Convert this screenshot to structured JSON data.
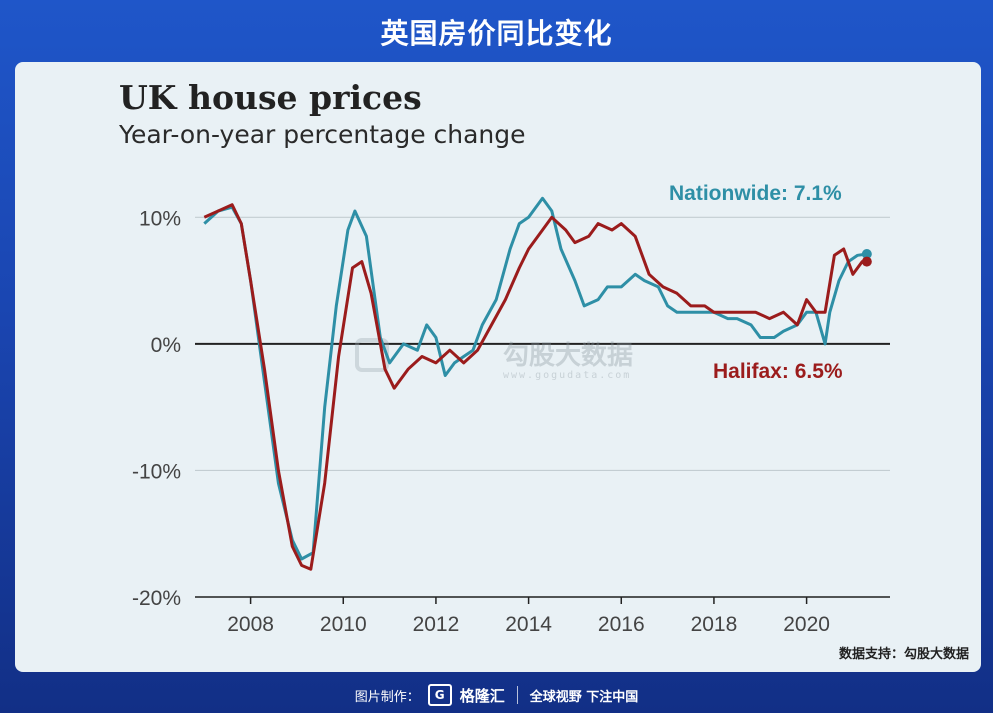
{
  "header": {
    "title": "英国房价同比变化"
  },
  "chart_data": {
    "type": "line",
    "title": "UK house prices",
    "subtitle": "Year-on-year percentage change",
    "xlabel": "",
    "ylabel": "",
    "xlim": [
      2006.8,
      2021.8
    ],
    "ylim": [
      -20,
      12
    ],
    "y_ticks": [
      10,
      0,
      -10,
      -20
    ],
    "y_tick_labels": [
      "10%",
      "0%",
      "-10%",
      "-20%"
    ],
    "x_ticks": [
      2008,
      2010,
      2012,
      2014,
      2016,
      2018,
      2020
    ],
    "x_tick_labels": [
      "2008",
      "2010",
      "2012",
      "2014",
      "2016",
      "2018",
      "2020"
    ],
    "grid": true,
    "series": [
      {
        "name": "Nationwide: 7.1%",
        "color": "#2e8fa6",
        "x": [
          2007.0,
          2007.3,
          2007.6,
          2007.8,
          2008.0,
          2008.3,
          2008.6,
          2008.9,
          2009.1,
          2009.35,
          2009.6,
          2009.85,
          2010.1,
          2010.25,
          2010.5,
          2010.8,
          2011.0,
          2011.3,
          2011.6,
          2011.8,
          2012.0,
          2012.2,
          2012.4,
          2012.6,
          2012.8,
          2013.0,
          2013.3,
          2013.6,
          2013.8,
          2014.0,
          2014.3,
          2014.5,
          2014.7,
          2015.0,
          2015.2,
          2015.5,
          2015.7,
          2016.0,
          2016.3,
          2016.5,
          2016.8,
          2017.0,
          2017.2,
          2017.5,
          2017.8,
          2018.0,
          2018.3,
          2018.5,
          2018.8,
          2019.0,
          2019.3,
          2019.5,
          2019.8,
          2020.0,
          2020.2,
          2020.4,
          2020.5,
          2020.7,
          2020.9,
          2021.1,
          2021.3
        ],
        "values": [
          9.5,
          10.5,
          10.8,
          9.5,
          5.0,
          -3.0,
          -11.0,
          -15.5,
          -17.0,
          -16.5,
          -5.0,
          3.0,
          9.0,
          10.5,
          8.5,
          0.5,
          -1.5,
          0.0,
          -0.5,
          1.5,
          0.5,
          -2.5,
          -1.5,
          -1.0,
          -0.5,
          1.5,
          3.5,
          7.5,
          9.5,
          10.0,
          11.5,
          10.5,
          7.5,
          5.0,
          3.0,
          3.5,
          4.5,
          4.5,
          5.5,
          5.0,
          4.5,
          3.0,
          2.5,
          2.5,
          2.5,
          2.5,
          2.0,
          2.0,
          1.5,
          0.5,
          0.5,
          1.0,
          1.5,
          2.5,
          2.5,
          0.0,
          2.5,
          5.0,
          6.5,
          7.0,
          7.1
        ]
      },
      {
        "name": "Halifax: 6.5%",
        "color": "#9b1c1c",
        "x": [
          2007.0,
          2007.3,
          2007.6,
          2007.8,
          2008.0,
          2008.3,
          2008.6,
          2008.9,
          2009.1,
          2009.3,
          2009.6,
          2009.9,
          2010.2,
          2010.4,
          2010.6,
          2010.9,
          2011.1,
          2011.4,
          2011.7,
          2012.0,
          2012.3,
          2012.6,
          2012.9,
          2013.2,
          2013.5,
          2013.8,
          2014.0,
          2014.3,
          2014.5,
          2014.8,
          2015.0,
          2015.3,
          2015.5,
          2015.8,
          2016.0,
          2016.3,
          2016.6,
          2016.9,
          2017.2,
          2017.5,
          2017.8,
          2018.0,
          2018.3,
          2018.6,
          2018.9,
          2019.2,
          2019.5,
          2019.8,
          2020.0,
          2020.2,
          2020.4,
          2020.6,
          2020.8,
          2021.0,
          2021.2,
          2021.3
        ],
        "values": [
          10.0,
          10.5,
          11.0,
          9.5,
          5.0,
          -2.0,
          -10.0,
          -16.0,
          -17.5,
          -17.8,
          -11.0,
          -1.0,
          6.0,
          6.5,
          4.0,
          -2.0,
          -3.5,
          -2.0,
          -1.0,
          -1.5,
          -0.5,
          -1.5,
          -0.5,
          1.5,
          3.5,
          6.0,
          7.5,
          9.0,
          10.0,
          9.0,
          8.0,
          8.5,
          9.5,
          9.0,
          9.5,
          8.5,
          5.5,
          4.5,
          4.0,
          3.0,
          3.0,
          2.5,
          2.5,
          2.5,
          2.5,
          2.0,
          2.5,
          1.5,
          3.5,
          2.5,
          2.5,
          7.0,
          7.5,
          5.5,
          6.5,
          6.5
        ]
      }
    ]
  },
  "watermark": {
    "brand": "勾股大数据",
    "url": "www.gogudata.com"
  },
  "credit": "数据支持：勾股大数据",
  "footer": {
    "prefix": "图片制作：",
    "logo_mark": "G",
    "logo_text": "格隆汇",
    "slogan": "全球视野 下注中国"
  }
}
